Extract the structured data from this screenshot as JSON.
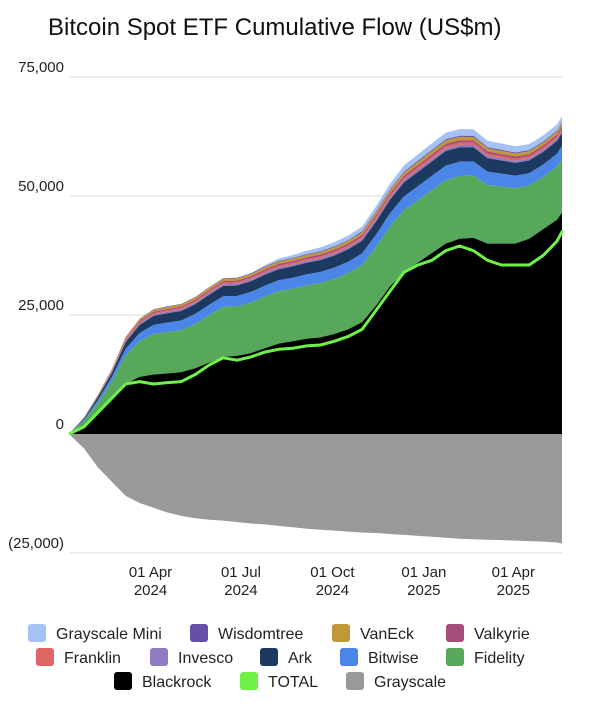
{
  "chart_data": {
    "type": "area",
    "stacked": true,
    "title": "Bitcoin Spot ETF Cumulative Flow (US$m)",
    "xlabel": "",
    "ylabel": "",
    "ylim": [
      -25000,
      75000
    ],
    "y_ticks": [
      75000,
      50000,
      25000,
      0,
      -25000
    ],
    "y_tick_labels": [
      "75,000",
      "50,000",
      "25,000",
      "0",
      "(25,000)"
    ],
    "x_range": [
      "2024-01-11",
      "2025-05-20"
    ],
    "x_ticks": [
      {
        "date": "2024-04-01",
        "line1": "01 Apr",
        "line2": "2024"
      },
      {
        "date": "2024-07-01",
        "line1": "01 Jul",
        "line2": "2024"
      },
      {
        "date": "2024-10-01",
        "line1": "01 Oct",
        "line2": "2024"
      },
      {
        "date": "2025-01-01",
        "line1": "01 Jan",
        "line2": "2025"
      },
      {
        "date": "2025-04-01",
        "line1": "01 Apr",
        "line2": "2025"
      }
    ],
    "x": [
      "2024-01-11",
      "2024-01-25",
      "2024-02-08",
      "2024-02-22",
      "2024-03-07",
      "2024-03-21",
      "2024-04-04",
      "2024-04-18",
      "2024-05-02",
      "2024-05-16",
      "2024-05-30",
      "2024-06-13",
      "2024-06-27",
      "2024-07-11",
      "2024-07-25",
      "2024-08-08",
      "2024-08-22",
      "2024-09-05",
      "2024-09-19",
      "2024-10-03",
      "2024-10-17",
      "2024-10-31",
      "2024-11-14",
      "2024-11-28",
      "2024-12-12",
      "2024-12-26",
      "2025-01-09",
      "2025-01-23",
      "2025-02-06",
      "2025-02-20",
      "2025-03-06",
      "2025-03-20",
      "2025-04-03",
      "2025-04-17",
      "2025-05-01",
      "2025-05-15",
      "2025-05-20"
    ],
    "legend_position": "bottom",
    "series": [
      {
        "name": "Blackrock",
        "color": "#000000",
        "values": [
          100,
          1800,
          4500,
          7500,
          10500,
          12000,
          12500,
          12700,
          13000,
          13800,
          15000,
          16200,
          16400,
          17000,
          18000,
          19000,
          19500,
          20000,
          20300,
          21000,
          22000,
          23500,
          27000,
          31000,
          34000,
          36000,
          38000,
          40000,
          41000,
          41200,
          40000,
          40000,
          40000,
          41000,
          43000,
          45000,
          46500
        ]
      },
      {
        "name": "Fidelity",
        "color": "#57a85a",
        "values": [
          100,
          900,
          2000,
          3500,
          6000,
          7500,
          8500,
          8700,
          8800,
          9300,
          10000,
          10500,
          10400,
          10600,
          10900,
          11000,
          11000,
          11200,
          11400,
          11600,
          11800,
          12000,
          12300,
          12600,
          13000,
          13100,
          13200,
          13300,
          13200,
          13100,
          12300,
          12000,
          11600,
          11200,
          11000,
          11200,
          11300
        ]
      },
      {
        "name": "Bitwise",
        "color": "#4a86e8",
        "values": [
          20,
          250,
          600,
          900,
          1400,
          1700,
          1900,
          2000,
          2050,
          2100,
          2150,
          2200,
          2200,
          2230,
          2260,
          2280,
          2300,
          2320,
          2340,
          2360,
          2400,
          2450,
          2600,
          2750,
          2900,
          2950,
          3000,
          3050,
          3000,
          2950,
          2800,
          2700,
          2650,
          2600,
          2600,
          2650,
          2700
        ]
      },
      {
        "name": "Ark",
        "color": "#1c3a5f",
        "values": [
          20,
          250,
          600,
          900,
          1400,
          1700,
          1900,
          1950,
          2000,
          2050,
          2100,
          2200,
          2200,
          2250,
          2300,
          2350,
          2400,
          2450,
          2500,
          2550,
          2600,
          2650,
          2750,
          2850,
          2950,
          3000,
          3050,
          3100,
          3050,
          3000,
          2850,
          2750,
          2700,
          2650,
          2650,
          2700,
          2750
        ]
      },
      {
        "name": "Invesco",
        "color": "#8e7cc3",
        "values": [
          10,
          60,
          120,
          180,
          260,
          300,
          320,
          330,
          330,
          340,
          350,
          360,
          360,
          365,
          370,
          375,
          380,
          385,
          390,
          395,
          400,
          410,
          430,
          450,
          460,
          470,
          480,
          480,
          475,
          470,
          450,
          440,
          430,
          425,
          425,
          430,
          430
        ]
      },
      {
        "name": "Franklin",
        "color": "#e06666",
        "values": [
          10,
          50,
          100,
          160,
          220,
          260,
          280,
          290,
          300,
          310,
          320,
          330,
          330,
          340,
          350,
          360,
          370,
          380,
          390,
          400,
          410,
          420,
          440,
          460,
          480,
          490,
          500,
          510,
          500,
          495,
          480,
          470,
          460,
          455,
          455,
          460,
          465
        ]
      },
      {
        "name": "Valkyrie",
        "color": "#a64d79",
        "values": [
          10,
          50,
          100,
          160,
          230,
          270,
          290,
          300,
          300,
          310,
          320,
          330,
          330,
          340,
          350,
          360,
          370,
          380,
          390,
          400,
          410,
          420,
          440,
          460,
          480,
          490,
          500,
          510,
          500,
          495,
          480,
          470,
          460,
          455,
          455,
          460,
          460
        ]
      },
      {
        "name": "VanEck",
        "color": "#c09838",
        "values": [
          10,
          60,
          150,
          230,
          320,
          380,
          410,
          420,
          430,
          440,
          450,
          460,
          460,
          470,
          480,
          490,
          500,
          510,
          520,
          530,
          540,
          550,
          580,
          610,
          640,
          660,
          680,
          700,
          690,
          680,
          650,
          630,
          620,
          610,
          610,
          620,
          625
        ]
      },
      {
        "name": "Wisdomtree",
        "color": "#674ea7",
        "values": [
          5,
          25,
          50,
          70,
          95,
          110,
          120,
          125,
          130,
          135,
          140,
          145,
          145,
          150,
          155,
          160,
          165,
          170,
          175,
          180,
          185,
          190,
          200,
          210,
          220,
          225,
          230,
          235,
          230,
          228,
          220,
          215,
          212,
          210,
          210,
          212,
          215
        ]
      },
      {
        "name": "Grayscale Mini",
        "color": "#a4c2f4",
        "values": [
          0,
          0,
          0,
          0,
          0,
          0,
          0,
          0,
          0,
          0,
          0,
          0,
          0,
          50,
          300,
          500,
          600,
          700,
          800,
          900,
          950,
          1000,
          1100,
          1200,
          1300,
          1350,
          1400,
          1420,
          1420,
          1400,
          1380,
          1350,
          1320,
          1300,
          1300,
          1310,
          1320
        ]
      },
      {
        "name": "Grayscale",
        "color": "#999999",
        "values": [
          -200,
          -3000,
          -7000,
          -10000,
          -13000,
          -14500,
          -15500,
          -16500,
          -17200,
          -17700,
          -18000,
          -18200,
          -18500,
          -18800,
          -19000,
          -19300,
          -19600,
          -19900,
          -20100,
          -20300,
          -20500,
          -20700,
          -20800,
          -21000,
          -21200,
          -21400,
          -21600,
          -21800,
          -22000,
          -22100,
          -22200,
          -22300,
          -22400,
          -22500,
          -22600,
          -22800,
          -23000
        ]
      },
      {
        "name": "TOTAL",
        "color": "#6ef247",
        "type": "line",
        "values": [
          100,
          1500,
          4500,
          7500,
          10500,
          11000,
          10500,
          10800,
          11000,
          12500,
          14500,
          16000,
          15500,
          16200,
          17200,
          17800,
          18000,
          18500,
          18700,
          19500,
          20500,
          22000,
          26000,
          30000,
          34000,
          35500,
          36500,
          38500,
          39500,
          38500,
          36500,
          35500,
          35500,
          35500,
          37500,
          40500,
          42500
        ]
      }
    ],
    "legend": [
      [
        "Grayscale Mini",
        "Wisdomtree",
        "VanEck",
        "Valkyrie"
      ],
      [
        "Franklin",
        "Invesco",
        "Ark",
        "Bitwise",
        "Fidelity"
      ],
      [
        "Blackrock",
        "TOTAL",
        "Grayscale"
      ]
    ]
  }
}
